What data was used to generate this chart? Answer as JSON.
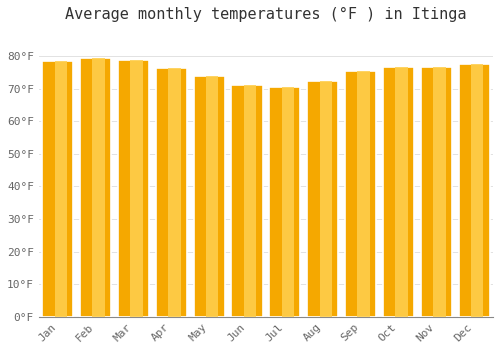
{
  "title": "Average monthly temperatures (°F ) in Itinga",
  "months": [
    "Jan",
    "Feb",
    "Mar",
    "Apr",
    "May",
    "Jun",
    "Jul",
    "Aug",
    "Sep",
    "Oct",
    "Nov",
    "Dec"
  ],
  "values": [
    78.5,
    79.5,
    78.8,
    76.5,
    74.0,
    71.0,
    70.5,
    72.5,
    75.5,
    76.8,
    76.8,
    77.5
  ],
  "bar_color_left": "#F5A800",
  "bar_color_right": "#FFD050",
  "bar_edge_color": "#FFFFFF",
  "background_color": "#FFFFFF",
  "ylim": [
    0,
    88
  ],
  "yticks": [
    0,
    10,
    20,
    30,
    40,
    50,
    60,
    70,
    80
  ],
  "ytick_labels": [
    "0°F",
    "10°F",
    "20°F",
    "30°F",
    "40°F",
    "50°F",
    "60°F",
    "70°F",
    "80°F"
  ],
  "grid_color": "#dddddd",
  "title_fontsize": 11,
  "tick_fontsize": 8,
  "font_family": "monospace"
}
